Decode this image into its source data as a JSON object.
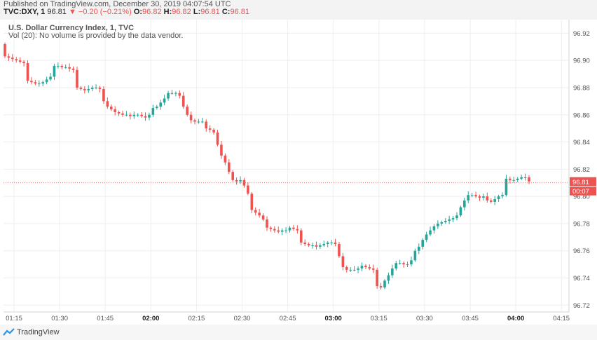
{
  "header": {
    "published": "Published on TradingView.com, December 30, 2019 04:07:54 UTC",
    "symbol": "TVC:DXY, 1",
    "last": "96.81",
    "change": "−0.20 (−0.21%)",
    "o_label": "O:",
    "o_value": "96.82",
    "h_label": "H:",
    "h_value": "96.82",
    "l_label": "L:",
    "l_value": "96.81",
    "c_label": "C:",
    "c_value": "96.81"
  },
  "legend": {
    "title": "U.S. Dollar Currency Index, 1, TVC",
    "volume_note": "Vol (20): No volume is provided by the data vendor."
  },
  "last_price": {
    "price": "96.81",
    "countdown": "00:07"
  },
  "footer": {
    "brand": "TradingView"
  },
  "colors": {
    "up": "#26a69a",
    "down": "#ef5350",
    "grid": "#eeeeee",
    "axis": "#d6d6d6",
    "price_line": "#ef5350"
  },
  "chart_data": {
    "type": "candlestick",
    "timeframe_minutes": 1,
    "y_ticks": [
      96.72,
      96.74,
      96.76,
      96.78,
      96.8,
      96.82,
      96.84,
      96.86,
      96.88,
      96.9,
      96.92
    ],
    "ylim": [
      96.715,
      96.93
    ],
    "x_ticks": [
      {
        "label": "01:15",
        "bold": false
      },
      {
        "label": "01:30",
        "bold": false
      },
      {
        "label": "01:45",
        "bold": false
      },
      {
        "label": "02:00",
        "bold": true
      },
      {
        "label": "02:15",
        "bold": false
      },
      {
        "label": "02:30",
        "bold": false
      },
      {
        "label": "02:45",
        "bold": false
      },
      {
        "label": "03:00",
        "bold": true
      },
      {
        "label": "03:15",
        "bold": false
      },
      {
        "label": "03:30",
        "bold": false
      },
      {
        "label": "03:45",
        "bold": false
      },
      {
        "label": "04:00",
        "bold": true
      },
      {
        "label": "04:15",
        "bold": false
      }
    ],
    "closes": [
      96.903,
      96.902,
      96.901,
      96.9,
      96.899,
      96.898,
      96.885,
      96.884,
      96.883,
      96.883,
      96.884,
      96.886,
      96.888,
      96.896,
      96.896,
      96.895,
      96.895,
      96.894,
      96.893,
      96.88,
      96.879,
      96.878,
      96.879,
      96.88,
      96.88,
      96.879,
      96.87,
      96.866,
      96.864,
      96.862,
      96.861,
      96.86,
      96.86,
      96.859,
      96.86,
      96.86,
      96.859,
      96.858,
      96.86,
      96.865,
      96.866,
      96.869,
      96.872,
      96.876,
      96.876,
      96.876,
      96.874,
      96.866,
      96.86,
      96.856,
      96.855,
      96.855,
      96.855,
      96.85,
      96.849,
      96.847,
      96.838,
      96.83,
      96.825,
      96.818,
      96.812,
      96.811,
      96.812,
      96.808,
      96.802,
      96.79,
      96.788,
      96.786,
      96.783,
      96.777,
      96.776,
      96.775,
      96.774,
      96.775,
      96.775,
      96.777,
      96.776,
      96.775,
      96.766,
      96.765,
      96.764,
      96.764,
      96.763,
      96.764,
      96.765,
      96.766,
      96.766,
      96.765,
      96.756,
      96.748,
      96.746,
      96.746,
      96.746,
      96.747,
      96.749,
      96.748,
      96.747,
      96.746,
      96.734,
      96.733,
      96.738,
      96.742,
      96.747,
      96.751,
      96.751,
      96.75,
      96.75,
      96.753,
      96.76,
      96.763,
      96.768,
      96.772,
      96.775,
      96.778,
      96.78,
      96.781,
      96.782,
      96.783,
      96.784,
      96.786,
      96.792,
      96.797,
      96.801,
      96.801,
      96.8,
      96.799,
      96.8,
      96.797,
      96.796,
      96.798,
      96.8,
      96.801,
      96.813,
      96.812,
      96.812,
      96.813,
      96.814,
      96.814,
      96.811
    ],
    "open_first": 96.912
  }
}
